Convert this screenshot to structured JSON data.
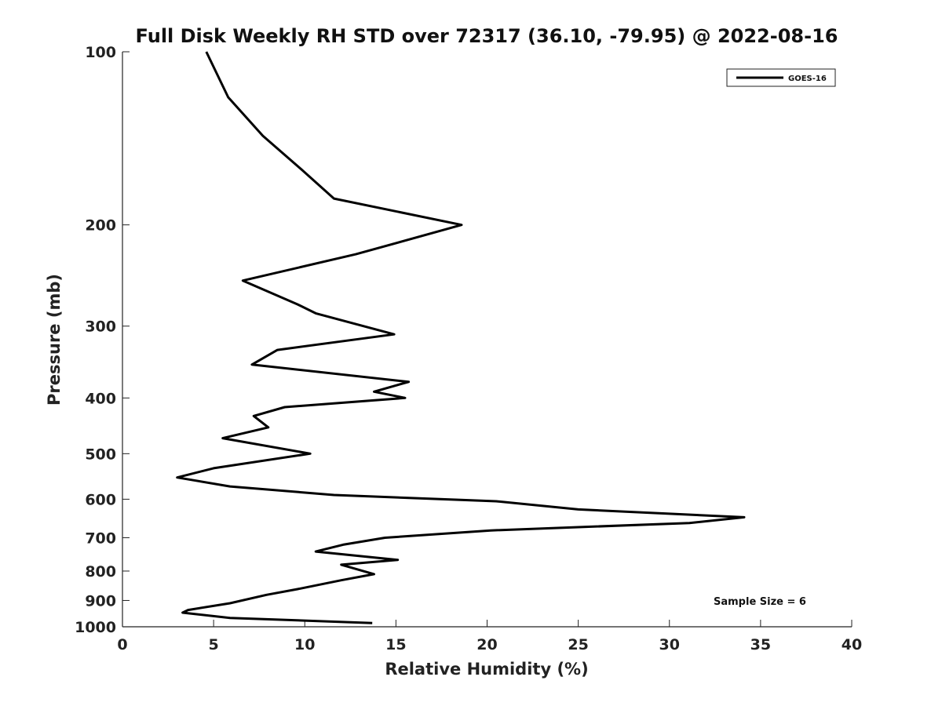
{
  "chart_data": {
    "type": "line",
    "title": "Full Disk Weekly RH STD over 72317 (36.10, -79.95) @ 2022-08-16",
    "xlabel": "Relative Humidity (%)",
    "ylabel": "Pressure (mb)",
    "xlim": [
      0,
      40
    ],
    "ylim": [
      1000,
      100
    ],
    "yscale": "log",
    "y_reversed": true,
    "x_ticks": [
      0,
      5,
      10,
      15,
      20,
      25,
      30,
      35,
      40
    ],
    "x_tick_labels": [
      "0",
      "5",
      "10",
      "15",
      "20",
      "25",
      "30",
      "35",
      "40"
    ],
    "y_ticks": [
      100,
      200,
      300,
      400,
      500,
      600,
      700,
      800,
      900,
      1000
    ],
    "y_tick_labels": [
      "100",
      "200",
      "300",
      "400",
      "500",
      "600",
      "700",
      "800",
      "900",
      "1000"
    ],
    "grid": false,
    "legend_position": "top-right",
    "annotation": "Sample Size = 6",
    "series": [
      {
        "name": "GOES-16",
        "color": "#000000",
        "x": [
          4.6,
          5.8,
          7.7,
          9.8,
          11.6,
          18.6,
          12.8,
          6.6,
          9.6,
          10.6,
          14.9,
          8.5,
          7.1,
          15.7,
          13.8,
          15.5,
          8.9,
          7.2,
          8.0,
          5.5,
          10.3,
          5.0,
          3.0,
          5.9,
          11.6,
          20.5,
          25.0,
          34.1,
          31.1,
          20.2,
          14.4,
          12.1,
          10.6,
          15.1,
          12.0,
          13.8,
          12.0,
          9.6,
          7.9,
          5.9,
          3.6,
          3.3,
          5.9,
          13.7
        ],
        "y": [
          100,
          120,
          140,
          160,
          180,
          200,
          225,
          250,
          275,
          285,
          310,
          330,
          350,
          375,
          390,
          400,
          415,
          430,
          450,
          470,
          500,
          530,
          550,
          570,
          590,
          605,
          625,
          645,
          660,
          680,
          700,
          720,
          740,
          765,
          780,
          810,
          830,
          860,
          880,
          910,
          935,
          945,
          965,
          985
        ]
      }
    ]
  }
}
